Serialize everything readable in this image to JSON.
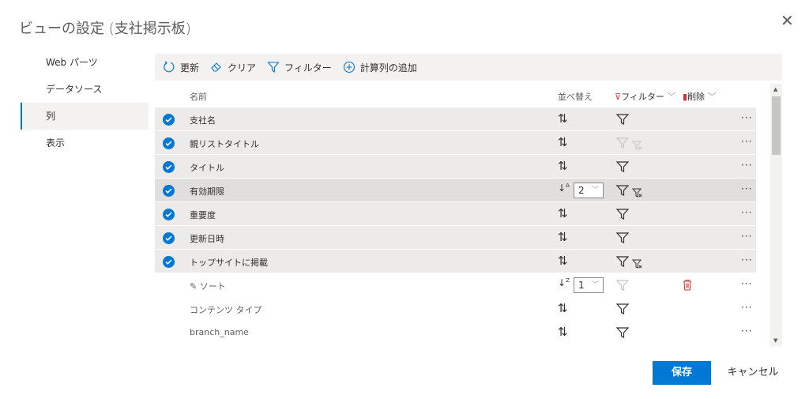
{
  "title": "ビューの設定 (支社掲示板)",
  "nav": [
    "Web パーツ",
    "データソース",
    "列",
    "表示"
  ],
  "nav_selected": 2,
  "toolbar": {
    "refresh": "更新",
    "clear": "クリア",
    "filter": "フィルター",
    "add_calc": "計算列の追加"
  },
  "header": {
    "name": "名前",
    "sort": "並べ替え",
    "filter": "フィルター",
    "delete": "削除"
  },
  "rows": [
    {
      "name": "支社名",
      "checked": true,
      "sort": "none",
      "filter": "on",
      "clearfilter": false
    },
    {
      "name": "親リストタイトル",
      "checked": true,
      "sort": "none",
      "filter": "disabled",
      "clearfilter": true
    },
    {
      "name": "タイトル",
      "checked": true,
      "sort": "none",
      "filter": "on",
      "clearfilter": false
    },
    {
      "name": "有効期限",
      "checked": true,
      "sort": "asc",
      "order": "2",
      "filter": "on",
      "clearfilter": true
    },
    {
      "name": "重要度",
      "checked": true,
      "sort": "none",
      "filter": "on",
      "clearfilter": false
    },
    {
      "name": "更新日時",
      "checked": true,
      "sort": "none",
      "filter": "on",
      "clearfilter": false
    },
    {
      "name": "トップサイトに掲載",
      "checked": true,
      "sort": "none",
      "filter": "on",
      "clearfilter": true
    },
    {
      "name": "ソート",
      "checked": false,
      "edit": true,
      "sort": "desc",
      "order": "1",
      "filter": "disabled",
      "clearfilter": false,
      "deletable": true
    },
    {
      "name": "コンテンツ タイプ",
      "checked": false,
      "sort": "none",
      "filter": "on",
      "clearfilter": false
    },
    {
      "name": "branch_name",
      "checked": false,
      "sort": "none",
      "filter": "on",
      "clearfilter": false
    }
  ],
  "buttons": {
    "save": "保存",
    "cancel": "キャンセル"
  },
  "colors": {
    "accent": "#0078d4",
    "delete": "#d13438"
  }
}
